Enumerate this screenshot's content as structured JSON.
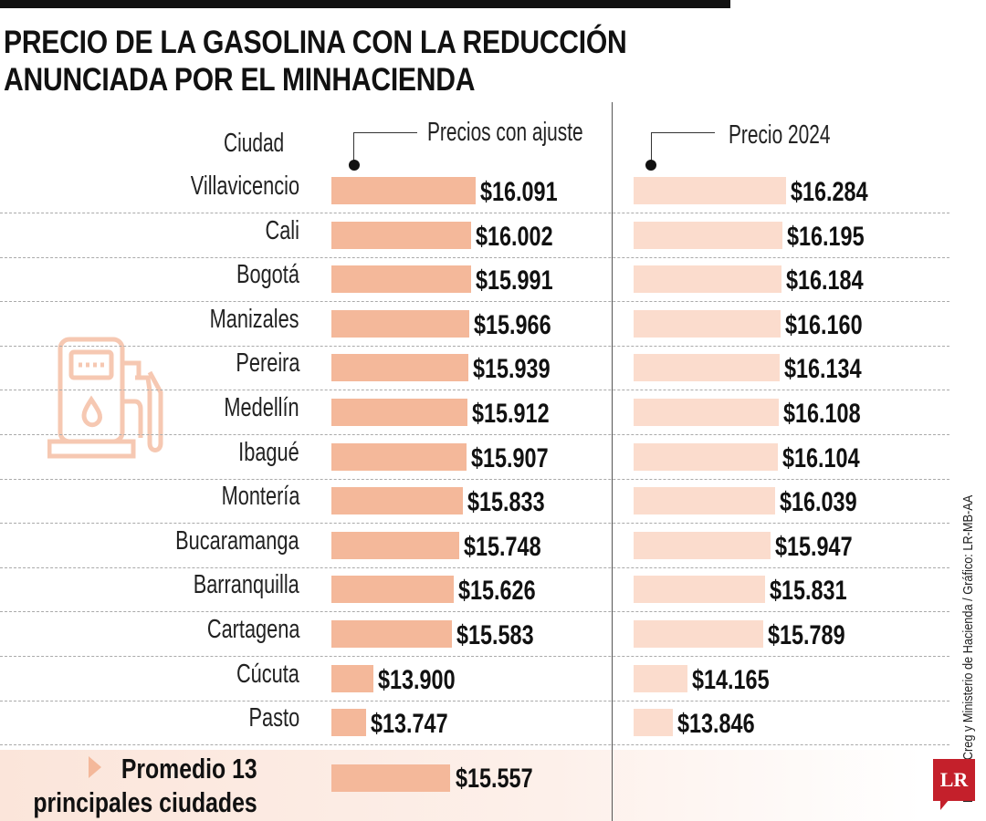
{
  "chart_data": {
    "type": "bar",
    "title": "PRECIO DE LA GASOLINA CON LA REDUCCIÓN ANUNCIADA POR EL MINHACIENDA",
    "category_header": "Ciudad",
    "categories": [
      "Villavicencio",
      "Cali",
      "Bogotá",
      "Manizales",
      "Pereira",
      "Medellín",
      "Ibagué",
      "Montería",
      "Bucaramanga",
      "Barranquilla",
      "Cartagena",
      "Cúcuta",
      "Pasto"
    ],
    "series": [
      {
        "name": "Precios con ajuste",
        "color": "#f4b89a",
        "values": [
          16091,
          16002,
          15991,
          15966,
          15939,
          15912,
          15907,
          15833,
          15748,
          15626,
          15583,
          13900,
          13747
        ],
        "labels": [
          "$16.091",
          "$16.002",
          "$15.991",
          "$15.966",
          "$15.939",
          "$15.912",
          "$15.907",
          "$15.833",
          "$15.748",
          "$15.626",
          "$15.583",
          "$13.900",
          "$13.747"
        ]
      },
      {
        "name": "Precio 2024",
        "color": "#fbdccd",
        "values": [
          16284,
          16195,
          16184,
          16160,
          16134,
          16108,
          16104,
          16039,
          15947,
          15831,
          15789,
          14165,
          13846
        ],
        "labels": [
          "$16.284",
          "$16.195",
          "$16.184",
          "$16.160",
          "$16.134",
          "$16.108",
          "$16.104",
          "$16.039",
          "$15.947",
          "$15.831",
          "$15.789",
          "$14.165",
          "$13.846"
        ]
      }
    ],
    "average": {
      "label_line1": "Promedio 13",
      "label_line2": "principales ciudades",
      "value": 15557,
      "value_label": "$15.557"
    }
  },
  "title_line1": "PRECIO DE LA GASOLINA CON LA REDUCCIÓN",
  "title_line2": "ANUNCIADA POR EL MINHACIENDA",
  "source": "Fuente: Creg y Ministerio de Hacienda / Gráfico: LR-MB-AA",
  "logo": "LR"
}
